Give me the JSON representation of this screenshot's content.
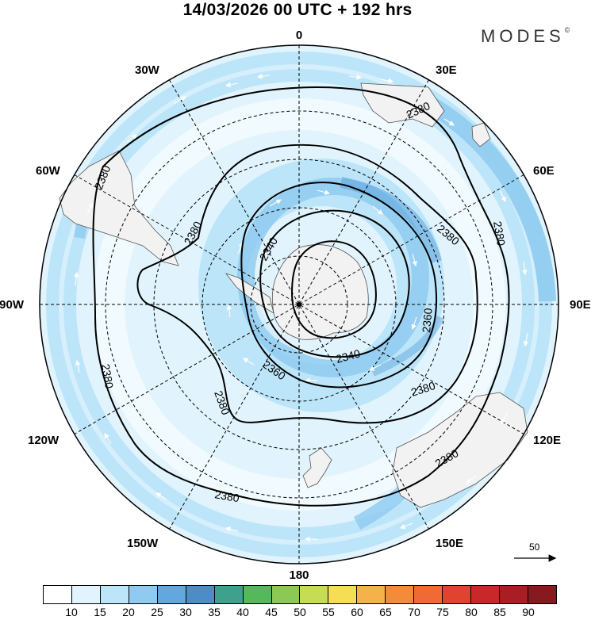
{
  "title": "14/03/2026  00 UTC  + 192 hrs",
  "brand": "MODES",
  "brand_mark": "©",
  "longitude_labels": {
    "top": "0",
    "bottom": "180",
    "left": "90W",
    "right": "90E",
    "upper_left_30": "30W",
    "upper_right_30": "30E",
    "upper_left_60": "60W",
    "upper_right_60": "60E",
    "lower_left_120": "120W",
    "lower_right_120": "120E",
    "lower_left_150": "150W",
    "lower_right_150": "150E"
  },
  "contour_labels": [
    "2380",
    "2380",
    "2380",
    "2380",
    "2380",
    "2380",
    "2380",
    "2380",
    "2380",
    "2380",
    "2360",
    "2360",
    "2340",
    "2340"
  ],
  "reference_vector": "50",
  "colorbar": {
    "colors": [
      "#ffffff",
      "#e1f4fd",
      "#bde5f9",
      "#8fcbf0",
      "#62a7dd",
      "#4b8dc4",
      "#3fa08e",
      "#55b85a",
      "#8dc857",
      "#c6dc55",
      "#f6dd56",
      "#f5b24a",
      "#f28c3c",
      "#ef6a34",
      "#e0432e",
      "#c8282a",
      "#a81e24",
      "#861a1e"
    ],
    "tick_labels": [
      "10",
      "15",
      "20",
      "25",
      "30",
      "35",
      "40",
      "45",
      "50",
      "55",
      "60",
      "65",
      "70",
      "75",
      "80",
      "85",
      "90"
    ]
  }
}
